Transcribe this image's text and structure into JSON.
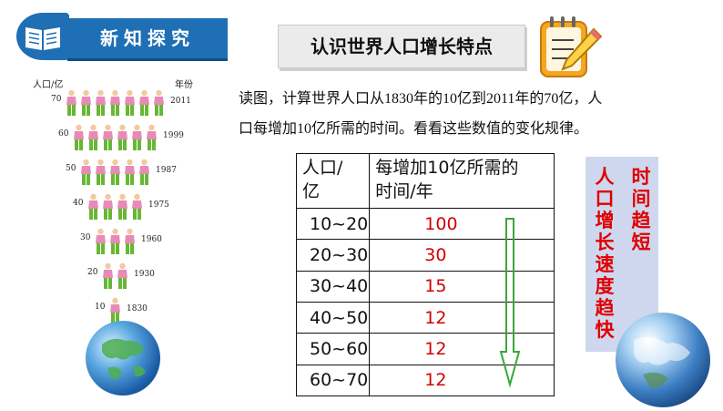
{
  "header": {
    "title": "新知探究",
    "icon": "book-icon"
  },
  "title_box": {
    "text": "认识世界人口增长特点"
  },
  "pyramid": {
    "left_label": "人口/亿",
    "right_label": "年份",
    "rows": [
      {
        "pop": "70",
        "year": "2011",
        "people": 7
      },
      {
        "pop": "60",
        "year": "1999",
        "people": 6
      },
      {
        "pop": "50",
        "year": "1987",
        "people": 5
      },
      {
        "pop": "40",
        "year": "1975",
        "people": 4
      },
      {
        "pop": "30",
        "year": "1960",
        "people": 3
      },
      {
        "pop": "20",
        "year": "1930",
        "people": 2
      },
      {
        "pop": "10",
        "year": "1830",
        "people": 1
      }
    ]
  },
  "instructions": {
    "line1": "读图，计算世界人口从1830年的10亿到2011年的70亿，人",
    "line2": "口每增加10亿所需的时间。看看这些数值的变化规律。"
  },
  "table": {
    "header_col1_line1": "人口/",
    "header_col1_line2": "亿",
    "header_col2_line1": "每增加10亿所需的",
    "header_col2_line2": "时间/年",
    "rows": [
      {
        "range": "10~20",
        "value": "100"
      },
      {
        "range": "20~30",
        "value": "30"
      },
      {
        "range": "30~40",
        "value": "15"
      },
      {
        "range": "40~50",
        "value": "12"
      },
      {
        "range": "50~60",
        "value": "12"
      },
      {
        "range": "60~70",
        "value": "12"
      }
    ]
  },
  "side_note": {
    "col_left": "人口增长速度趋快",
    "col_right": "时间趋短"
  },
  "colors": {
    "accent": "#1f6fb5",
    "value_red": "#d00000",
    "arrow_green": "#3aa63a",
    "note_bg": "#cfd7ee"
  }
}
